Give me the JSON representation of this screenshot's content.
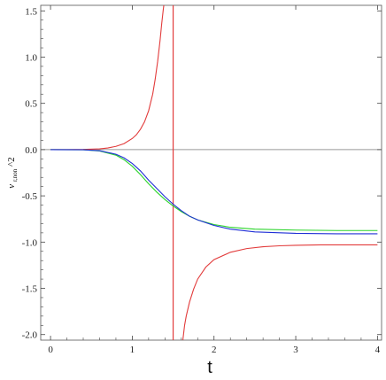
{
  "chart_data": {
    "type": "line",
    "xlabel": "t",
    "ylabel_main": "v",
    "ylabel_sub": "r,non",
    "ylabel_suffix": "^2",
    "xlim": [
      -0.12,
      4.05
    ],
    "ylim": [
      -2.06,
      1.56
    ],
    "xticks": [
      0,
      1,
      2,
      3,
      4
    ],
    "xtick_labels": [
      "0",
      "1",
      "2",
      "3",
      "4"
    ],
    "yticks": [
      1.5,
      1.0,
      0.5,
      0.0,
      -0.5,
      -1.0,
      -1.5,
      -2.0
    ],
    "ytick_labels": [
      "1.5",
      "1.0",
      "0.5",
      "0.0",
      "-0.5",
      "-1.0",
      "-1.5",
      "-2.0"
    ],
    "grid": false,
    "legend": "none",
    "reference_lines": {
      "horizontal_zero": {
        "y": 0.0,
        "color": "#999999"
      },
      "vertical_asymptote": {
        "x": 1.5,
        "color": "#e23b3b"
      }
    },
    "series": [
      {
        "color": "#e23b3b",
        "segment": "left",
        "x": [
          0,
          0.2,
          0.4,
          0.6,
          0.7,
          0.8,
          0.9,
          1.0,
          1.05,
          1.1,
          1.15,
          1.2,
          1.25,
          1.28,
          1.31,
          1.34,
          1.36,
          1.38,
          1.4
        ],
        "values": [
          0.0,
          0.0,
          0.002,
          0.008,
          0.018,
          0.035,
          0.065,
          0.12,
          0.16,
          0.22,
          0.3,
          0.42,
          0.6,
          0.76,
          0.95,
          1.18,
          1.36,
          1.52,
          1.65
        ]
      },
      {
        "color": "#e23b3b",
        "segment": "right",
        "x": [
          1.6,
          1.62,
          1.64,
          1.66,
          1.7,
          1.75,
          1.8,
          1.9,
          2.0,
          2.2,
          2.4,
          2.6,
          2.8,
          3.0,
          3.3,
          3.6,
          4.0
        ],
        "values": [
          -2.2,
          -2.05,
          -1.9,
          -1.8,
          -1.65,
          -1.51,
          -1.4,
          -1.27,
          -1.19,
          -1.11,
          -1.07,
          -1.05,
          -1.04,
          -1.035,
          -1.03,
          -1.03,
          -1.03
        ]
      },
      {
        "color": "#2bd42b",
        "x": [
          0,
          0.4,
          0.6,
          0.8,
          0.9,
          1.0,
          1.1,
          1.2,
          1.3,
          1.4,
          1.5,
          1.6,
          1.7,
          1.8,
          2.0,
          2.2,
          2.5,
          3.0,
          3.5,
          4.0
        ],
        "values": [
          0.0,
          -0.002,
          -0.015,
          -0.06,
          -0.11,
          -0.18,
          -0.27,
          -0.37,
          -0.46,
          -0.54,
          -0.61,
          -0.67,
          -0.72,
          -0.76,
          -0.81,
          -0.84,
          -0.86,
          -0.87,
          -0.875,
          -0.875
        ]
      },
      {
        "color": "#1f2fd6",
        "x": [
          0,
          0.4,
          0.6,
          0.8,
          0.9,
          1.0,
          1.1,
          1.2,
          1.3,
          1.4,
          1.5,
          1.6,
          1.7,
          1.8,
          2.0,
          2.2,
          2.5,
          3.0,
          3.5,
          4.0
        ],
        "values": [
          0.0,
          -0.002,
          -0.012,
          -0.05,
          -0.09,
          -0.15,
          -0.23,
          -0.33,
          -0.42,
          -0.51,
          -0.59,
          -0.66,
          -0.72,
          -0.76,
          -0.82,
          -0.86,
          -0.89,
          -0.905,
          -0.91,
          -0.91
        ]
      }
    ]
  }
}
